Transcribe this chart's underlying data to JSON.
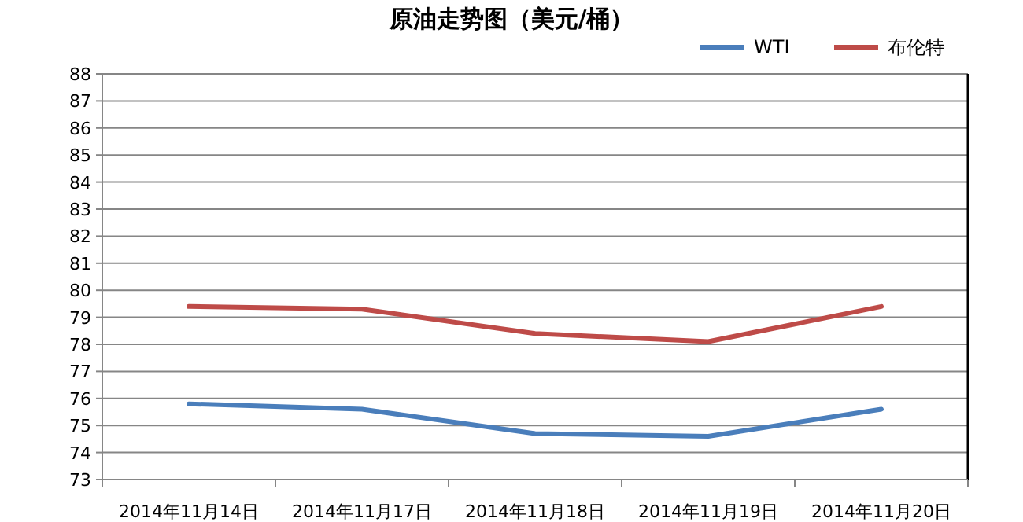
{
  "chart_data": {
    "type": "line",
    "title": "原油走势图（美元/桶）",
    "categories": [
      "2014年11月14日",
      "2014年11月17日",
      "2014年11月18日",
      "2014年11月19日",
      "2014年11月20日"
    ],
    "series": [
      {
        "name": "WTI",
        "color": "#4a7ebb",
        "values": [
          75.8,
          75.6,
          74.7,
          74.6,
          75.6
        ]
      },
      {
        "name": "布伦特",
        "color": "#be4b48",
        "values": [
          79.4,
          79.3,
          78.4,
          78.1,
          79.4
        ]
      }
    ],
    "ylim": [
      73,
      88
    ],
    "yticks": [
      73,
      74,
      75,
      76,
      77,
      78,
      79,
      80,
      81,
      82,
      83,
      84,
      85,
      86,
      87,
      88
    ],
    "grid": "y",
    "legend": "top right",
    "marker": "none",
    "line_style": "solid"
  }
}
